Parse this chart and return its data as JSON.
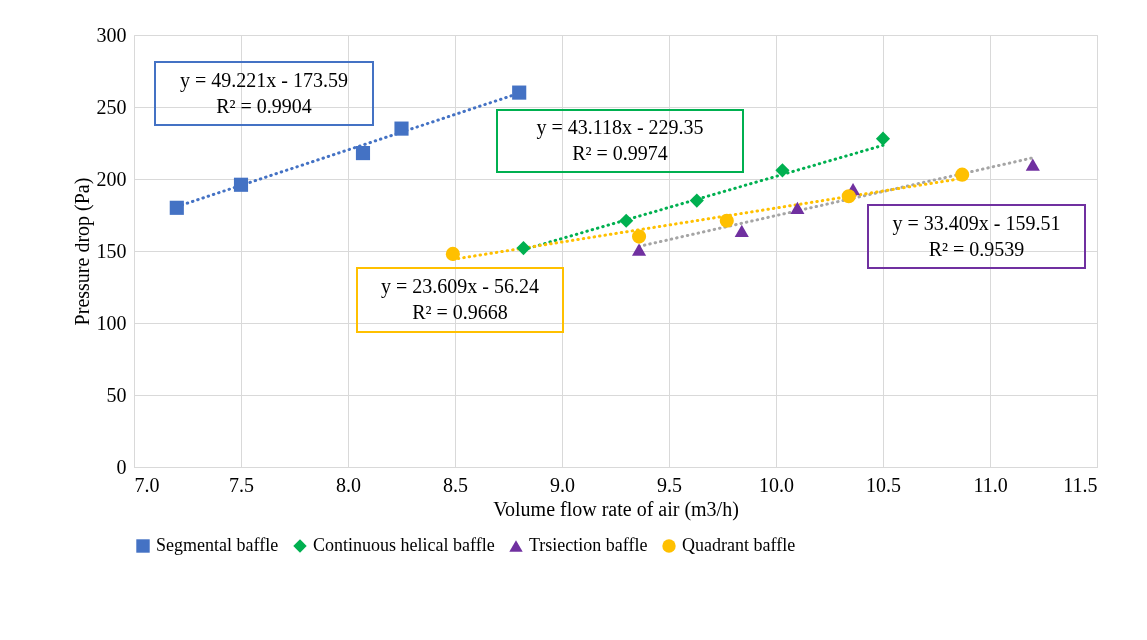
{
  "chart_data": {
    "type": "scatter",
    "xlabel": "Volume flow rate of air (m3/h)",
    "ylabel": "Pressure drop (Pa)",
    "xlim": [
      7.0,
      11.5
    ],
    "xticks": [
      {
        "value": 7,
        "label": "7.0"
      },
      7.5,
      {
        "value": 8,
        "label": "8.0"
      },
      8.5,
      {
        "value": 9,
        "label": "9.0"
      },
      9.5,
      {
        "value": 10,
        "label": "10.0"
      },
      10.5,
      {
        "value": 11,
        "label": "11.0"
      },
      11.5
    ],
    "ylim": [
      0,
      300
    ],
    "yticks": [
      0,
      50,
      100,
      150,
      200,
      250,
      300
    ],
    "grid": true,
    "legend": "bottom",
    "series": [
      {
        "name": "Segmental baffle",
        "color": "#4472c4",
        "marker": "square",
        "x": [
          7.2,
          7.5,
          8.07,
          8.25,
          8.8
        ],
        "values": [
          180,
          196,
          218,
          235,
          260
        ]
      },
      {
        "name": "Continuous helical baffle",
        "color": "#00b050",
        "marker": "diamond",
        "x": [
          8.82,
          9.3,
          9.63,
          10.03,
          10.5
        ],
        "values": [
          152,
          171,
          185,
          206,
          228
        ]
      },
      {
        "name": "Trsiection baffle",
        "color": "#7030a0",
        "marker": "triangle",
        "x": [
          9.36,
          9.84,
          10.1,
          10.36,
          11.2
        ],
        "values": [
          151,
          164,
          180,
          193,
          210
        ]
      },
      {
        "name": "Quadrant baffle",
        "color": "#ffc000",
        "marker": "circle",
        "x": [
          8.49,
          9.36,
          9.77,
          10.34,
          10.87
        ],
        "values": [
          148,
          160,
          171,
          188,
          203
        ]
      },
      {
        "type": "line",
        "line_style": "dotted",
        "color": "#4472c4",
        "x": [
          7.2,
          8.8
        ],
        "values": [
          180.8,
          259.6
        ]
      },
      {
        "type": "line",
        "line_style": "dotted",
        "color": "#00b050",
        "x": [
          8.82,
          10.5
        ],
        "values": [
          150.9,
          223.4
        ]
      },
      {
        "type": "line",
        "line_style": "dotted",
        "color": "#a5a5a5",
        "x": [
          9.36,
          11.2
        ],
        "values": [
          153.2,
          214.7
        ]
      },
      {
        "type": "line",
        "line_style": "dotted",
        "color": "#ffc000",
        "x": [
          8.49,
          10.87
        ],
        "values": [
          144.2,
          200.4
        ]
      }
    ],
    "annotations": [
      "y = 49.221x - 173.59\nR² = 0.9904",
      "y = 43.118x - 229.35\nR² = 0.9974",
      "y = 33.409x - 159.51\nR² = 0.9539",
      "y = 23.609x - 56.24\nR² = 0.9668"
    ]
  }
}
